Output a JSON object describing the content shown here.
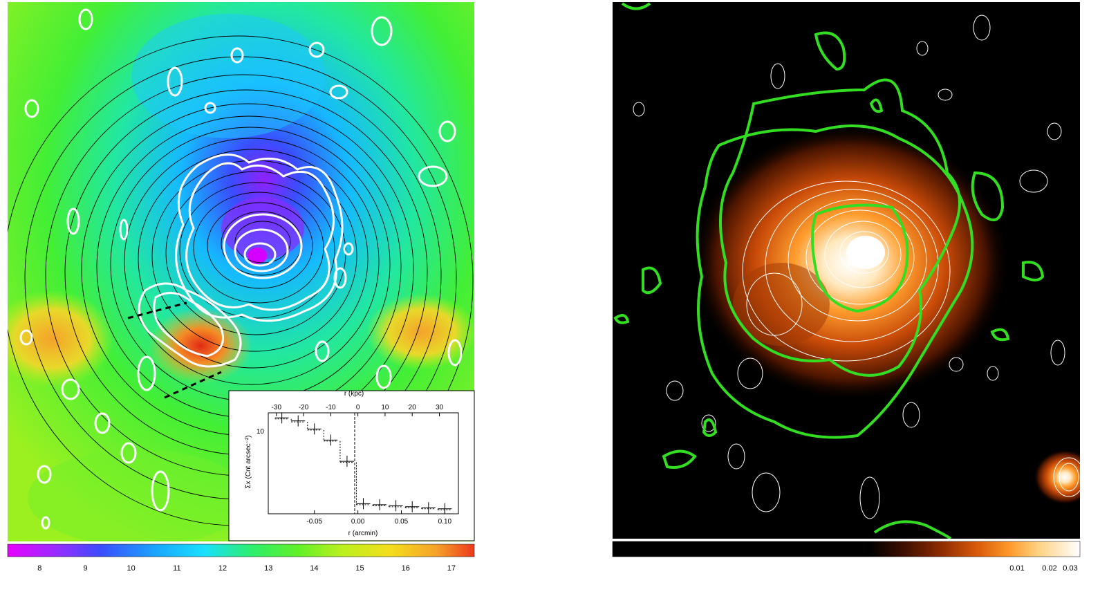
{
  "left_panel": {
    "colorbar": {
      "ticks": [
        "8",
        "9",
        "10",
        "11",
        "12",
        "13",
        "14",
        "15",
        "16",
        "17"
      ],
      "values": [
        8,
        9,
        10,
        11,
        12,
        13,
        14,
        15,
        16,
        17
      ],
      "range": [
        7.3,
        17.5
      ],
      "gradient": [
        "#e800ff",
        "#9b2bff",
        "#3a4dff",
        "#1aa7ff",
        "#19e0ff",
        "#2bef6e",
        "#5ff02a",
        "#bdf01d",
        "#f4de1c",
        "#f5a12a",
        "#ec3a1c"
      ]
    },
    "inset": {
      "top_axis_label": "r (kpc)",
      "top_ticks": [
        "-30",
        "-20",
        "-10",
        "0",
        "10",
        "20",
        "30"
      ],
      "bottom_axis_label": "r (arcmin)",
      "bottom_ticks": [
        "-0.05",
        "0.00",
        "0.05",
        "0.10"
      ],
      "y_axis_label": "Σx (Cnt arcsec⁻²)",
      "y_tick": "10"
    }
  },
  "right_panel": {
    "colorbar": {
      "ticks": [
        "0.01",
        "0.02",
        "0.03"
      ],
      "gradient": [
        "#000000",
        "#000000",
        "#3a0e00",
        "#8a2a00",
        "#d85a0a",
        "#ff9a2c",
        "#ffd280",
        "#ffffff"
      ]
    }
  },
  "chart_data": {
    "type": "scatter",
    "x": [
      -28,
      -22,
      -16,
      -10,
      -4,
      2,
      8,
      14,
      20,
      26,
      32
    ],
    "values": [
      11.5,
      11.2,
      10.4,
      9.3,
      7.2,
      3.0,
      2.9,
      2.8,
      2.7,
      2.6,
      2.5
    ],
    "xlabel": "r (kpc)",
    "ylabel": "Σx (Cnt arcsec⁻²)",
    "xlim": [
      -33,
      37
    ]
  }
}
